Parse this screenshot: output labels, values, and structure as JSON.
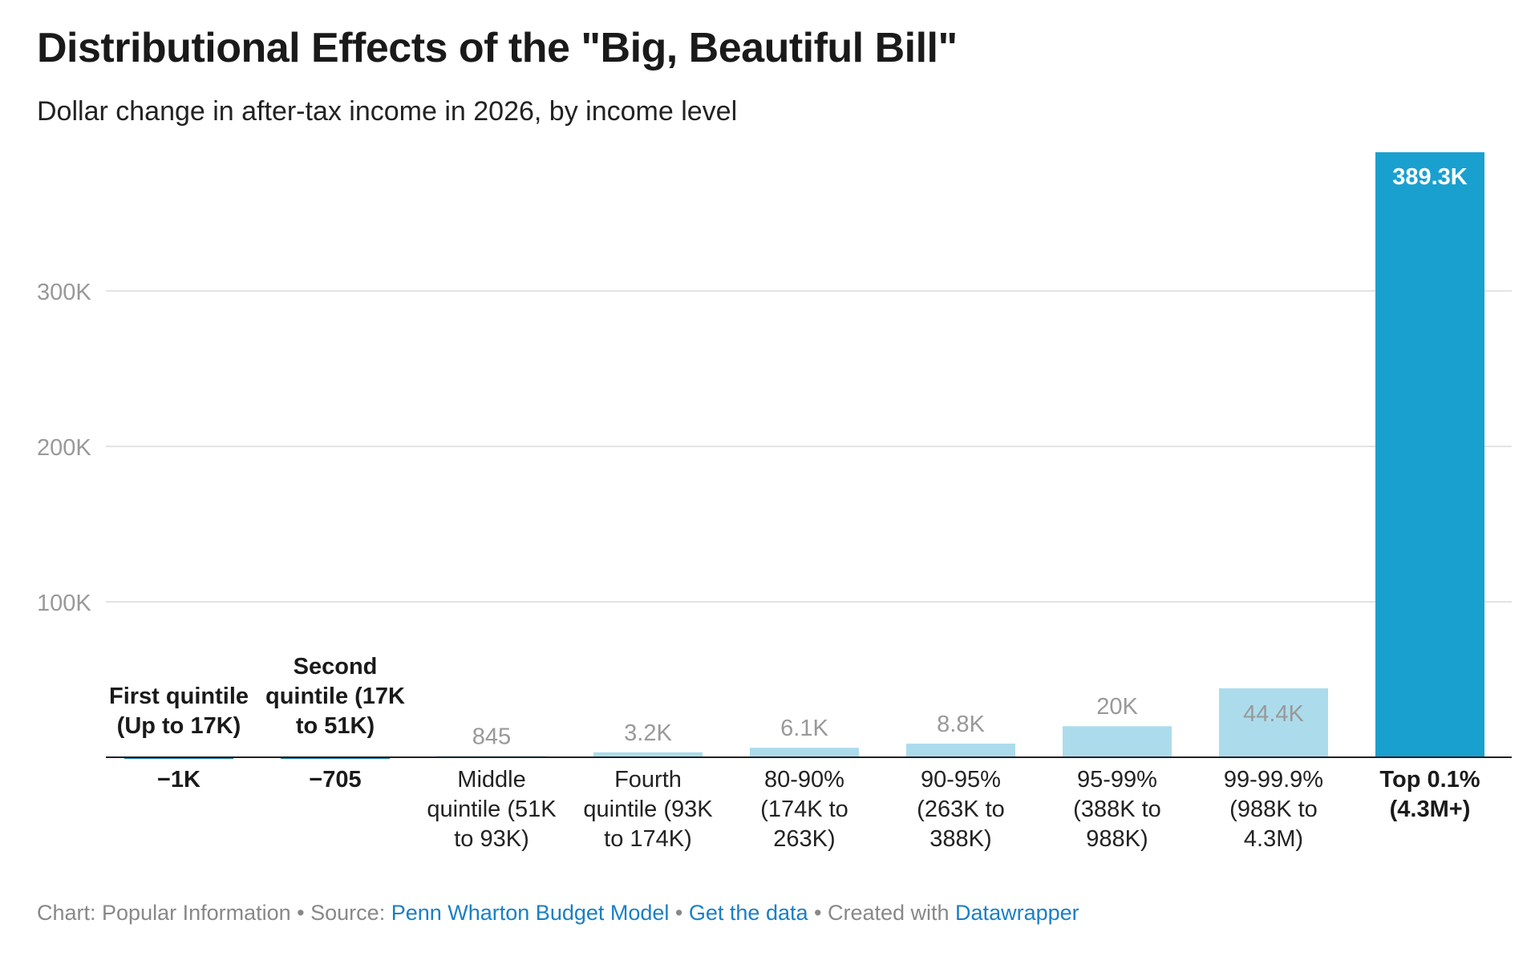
{
  "title": "Distributional Effects of the \"Big, Beautiful Bill\"",
  "subtitle": "Dollar change in after-tax income in 2026, by income level",
  "footer": {
    "chart_label": "Chart: Popular Information",
    "sep1": " • ",
    "source_label": "Source: ",
    "source_link": "Penn Wharton Budget Model",
    "sep2": " • ",
    "data_link": "Get the data",
    "sep3": " • ",
    "created_label": "Created with ",
    "created_link": "Datawrapper"
  },
  "colors": {
    "highlight": "#1aa0cf",
    "light": "#acdcec",
    "negative": "#1a7fb0",
    "grid": "#e2e2e2",
    "axis": "#222222",
    "tick": "#999999",
    "muted_label": "#999999",
    "strong_label": "#1a1a1a"
  },
  "chart_data": {
    "type": "bar",
    "title": "Distributional Effects of the \"Big, Beautiful Bill\"",
    "subtitle": "Dollar change in after-tax income in 2026, by income level",
    "xlabel": "",
    "ylabel": "",
    "ylim": [
      0,
      389300
    ],
    "yticks": [
      100000,
      200000,
      300000
    ],
    "ytick_labels": [
      "100K",
      "200K",
      "300K"
    ],
    "grid": true,
    "categories": [
      [
        "First quintile",
        "(Up to 17K)"
      ],
      [
        "Second",
        "quintile (17K",
        "to 51K)"
      ],
      [
        "Middle",
        "quintile (51K",
        "to 93K)"
      ],
      [
        "Fourth",
        "quintile (93K",
        "to 174K)"
      ],
      [
        "80-90%",
        "(174K to",
        "263K)"
      ],
      [
        "90-95%",
        "(263K to",
        "388K)"
      ],
      [
        "95-99%",
        "(388K to",
        "988K)"
      ],
      [
        "99-99.9%",
        "(988K to",
        "4.3M)"
      ],
      [
        "Top 0.1%",
        "(4.3M+)"
      ]
    ],
    "values": [
      -1000,
      -705,
      845,
      3200,
      6100,
      8800,
      20000,
      44400,
      389300
    ],
    "value_labels": [
      "−1K",
      "−705",
      "845",
      "3.2K",
      "6.1K",
      "8.8K",
      "20K",
      "44.4K",
      "389.3K"
    ],
    "highlight_index": 8
  }
}
